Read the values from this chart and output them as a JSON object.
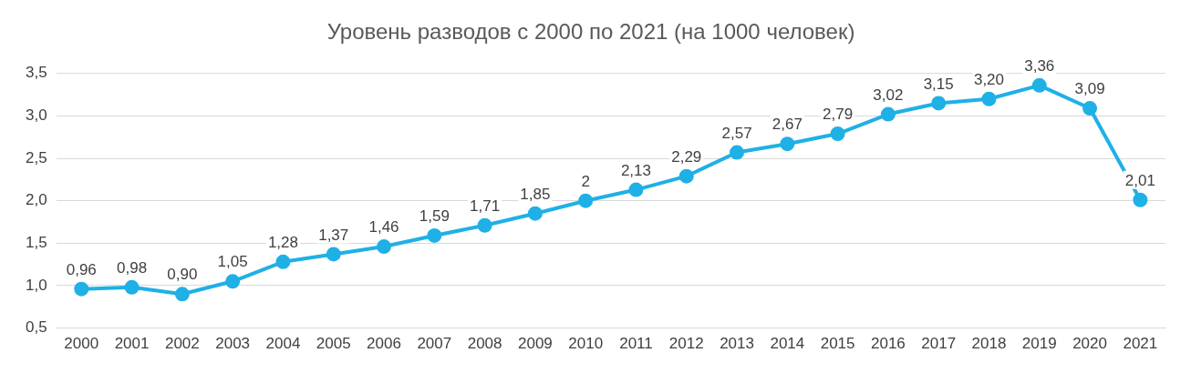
{
  "chart_data": {
    "type": "line",
    "title": "Уровень разводов с 2000 по 2021 (на 1000 человек)",
    "categories": [
      "2000",
      "2001",
      "2002",
      "2003",
      "2004",
      "2005",
      "2006",
      "2007",
      "2008",
      "2009",
      "2010",
      "2011",
      "2012",
      "2013",
      "2014",
      "2015",
      "2016",
      "2017",
      "2018",
      "2019",
      "2020",
      "2021"
    ],
    "series": [
      {
        "color": "#1fb0e6",
        "values": [
          0.96,
          0.98,
          0.9,
          1.05,
          1.28,
          1.37,
          1.46,
          1.59,
          1.71,
          1.85,
          2,
          2.13,
          2.29,
          2.57,
          2.67,
          2.79,
          3.02,
          3.15,
          3.2,
          3.36,
          3.09,
          2.01
        ],
        "value_labels": [
          "0,96",
          "0,98",
          "0,90",
          "1,05",
          "1,28",
          "1,37",
          "1,46",
          "1,59",
          "1,71",
          "1,85",
          "2",
          "2,13",
          "2,29",
          "2,57",
          "2,67",
          "2,79",
          "3,02",
          "3,15",
          "3,20",
          "3,36",
          "3,09",
          "2,01"
        ]
      }
    ],
    "ylim": [
      0.5,
      3.5
    ],
    "yticks": [
      {
        "value": 0.5,
        "label": "0,5"
      },
      {
        "value": 1,
        "label": "1,0"
      },
      {
        "value": 1.5,
        "label": "1,5"
      },
      {
        "value": 2,
        "label": "2,0"
      },
      {
        "value": 2.5,
        "label": "2,5"
      },
      {
        "value": 3,
        "label": "3,0"
      },
      {
        "value": 3.5,
        "label": "3,5"
      }
    ],
    "grid": "y",
    "legend": false,
    "marker": "circle",
    "line_style": "solid"
  }
}
